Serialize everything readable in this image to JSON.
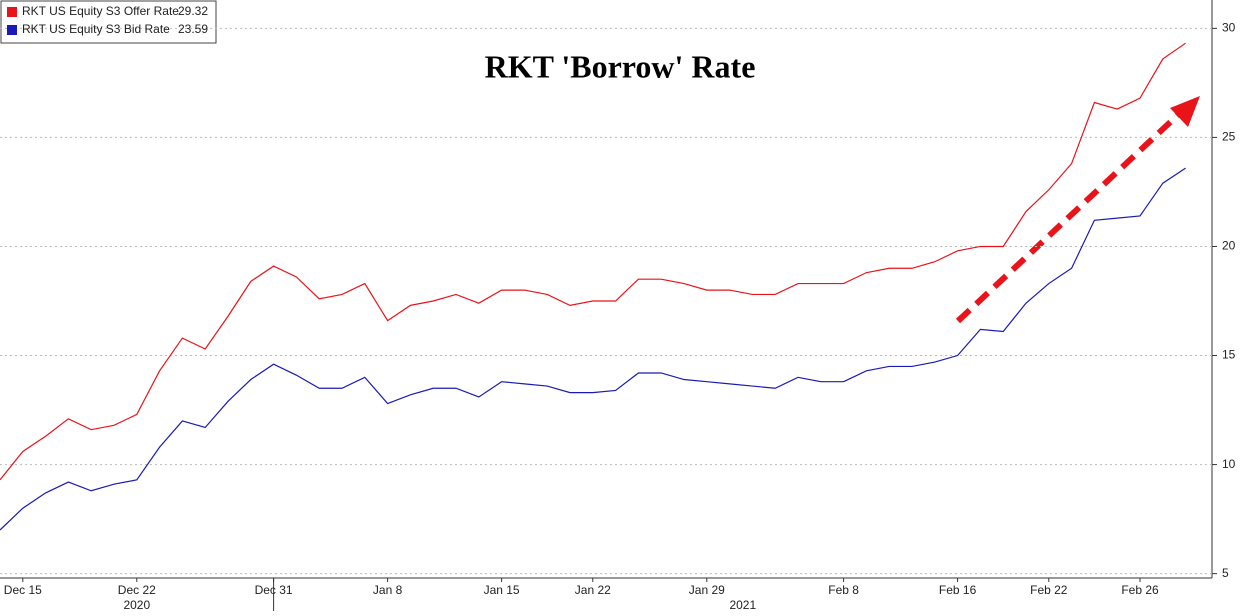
{
  "chart_data": {
    "type": "line",
    "title": "RKT 'Borrow' Rate",
    "categories": [
      null,
      "Dec 15",
      null,
      null,
      null,
      null,
      "Dec 22",
      null,
      null,
      null,
      null,
      null,
      "Dec 31",
      null,
      null,
      null,
      null,
      "Jan 8",
      null,
      null,
      null,
      null,
      "Jan 15",
      null,
      null,
      null,
      "Jan 22",
      null,
      null,
      null,
      null,
      "Jan 29",
      null,
      null,
      null,
      null,
      null,
      "Feb 8",
      null,
      null,
      null,
      null,
      "Feb 16",
      null,
      null,
      null,
      "Feb 22",
      null,
      null,
      null,
      "Feb 26",
      null,
      null
    ],
    "x_groups": [
      "2020",
      "2021"
    ],
    "series": [
      {
        "name": "RKT US Equity S3 Offer Rate",
        "color": "#e8141a",
        "values": [
          9.3,
          10.6,
          11.3,
          12.1,
          11.6,
          11.8,
          12.3,
          14.3,
          15.8,
          15.3,
          16.8,
          18.4,
          19.1,
          18.6,
          17.6,
          17.8,
          18.3,
          16.6,
          17.3,
          17.5,
          17.8,
          17.4,
          18.0,
          18.0,
          17.8,
          17.3,
          17.5,
          17.5,
          18.5,
          18.5,
          18.3,
          18.0,
          18.0,
          17.8,
          17.8,
          18.3,
          18.3,
          18.3,
          18.8,
          19.0,
          19.0,
          19.3,
          19.8,
          20.0,
          20.0,
          21.6,
          22.6,
          23.8,
          26.6,
          26.3,
          26.8,
          28.6,
          29.32
        ]
      },
      {
        "name": "RKT US Equity S3 Bid Rate",
        "color": "#1a1ab8",
        "values": [
          7.0,
          8.0,
          8.7,
          9.2,
          8.8,
          9.1,
          9.3,
          10.8,
          12.0,
          11.7,
          12.9,
          13.9,
          14.6,
          14.1,
          13.5,
          13.5,
          14.0,
          12.8,
          13.2,
          13.5,
          13.5,
          13.1,
          13.8,
          13.7,
          13.6,
          13.3,
          13.3,
          13.4,
          14.2,
          14.2,
          13.9,
          13.8,
          13.7,
          13.6,
          13.5,
          14.0,
          13.8,
          13.8,
          14.3,
          14.5,
          14.5,
          14.7,
          15.0,
          16.2,
          16.1,
          17.4,
          18.3,
          19.0,
          21.2,
          21.3,
          21.4,
          22.9,
          23.59
        ]
      }
    ],
    "ylim": [
      4.8,
      31.3
    ],
    "yticks": [
      5,
      10,
      15,
      20,
      25,
      30
    ],
    "grid": true
  }
}
